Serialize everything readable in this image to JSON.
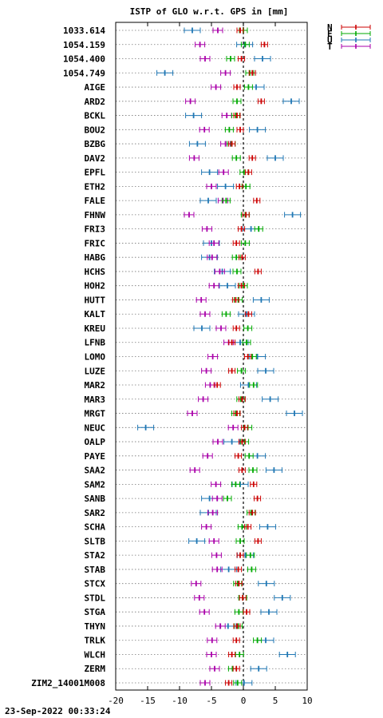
{
  "footer": {
    "timestamp": "23-Sep-2022 00:33:24"
  },
  "chart_data": {
    "type": "scatter",
    "title": "ISTP of GLO w.r.t. GPS in [mm]",
    "xlabel": "",
    "ylabel": "",
    "xlim": [
      -20,
      10
    ],
    "xticks": [
      -20,
      -15,
      -10,
      -5,
      0,
      5,
      10
    ],
    "xtick_labels": [
      "-20",
      "-15",
      "-10",
      "-5",
      "0",
      "5",
      "10"
    ],
    "grid": "horizontal dotted",
    "reference_line": 0,
    "legend_position": "top-right",
    "series": [
      {
        "name": "N",
        "color": "#cc0000"
      },
      {
        "name": "E",
        "color": "#00aa00"
      },
      {
        "name": "U",
        "color": "#1f77b4"
      },
      {
        "name": "T",
        "color": "#aa00aa"
      }
    ],
    "stations": [
      {
        "name": "1033.614",
        "N": -0.5,
        "E": 0.0,
        "U": -8.0,
        "T": -4.0
      },
      {
        "name": "1054.159",
        "N": 3.3,
        "E": 0.3,
        "U": 0.2,
        "T": -6.8
      },
      {
        "name": "1054.400",
        "N": -0.3,
        "E": -2.0,
        "U": 3.0,
        "T": -6.0
      },
      {
        "name": "1054.749",
        "N": 1.4,
        "E": 1.0,
        "U": -12.3,
        "T": -2.8
      },
      {
        "name": "AIGE",
        "N": -1.0,
        "E": 0.8,
        "U": 2.0,
        "T": -4.3
      },
      {
        "name": "ARD2",
        "N": 2.8,
        "E": -1.0,
        "U": 7.5,
        "T": -8.3
      },
      {
        "name": "BCKL",
        "N": -1.0,
        "E": -1.2,
        "U": -7.8,
        "T": -2.6
      },
      {
        "name": "BOU2",
        "N": -0.5,
        "E": -2.2,
        "U": 2.2,
        "T": -6.1
      },
      {
        "name": "BZBG",
        "N": -1.8,
        "E": -1.9,
        "U": -7.2,
        "T": -2.8
      },
      {
        "name": "DAV2",
        "N": 1.4,
        "E": -1.1,
        "U": 5.0,
        "T": -7.7
      },
      {
        "name": "EPFL",
        "N": 0.8,
        "E": 0.1,
        "U": -5.3,
        "T": -3.1
      },
      {
        "name": "ETH2",
        "N": -0.6,
        "E": 0.4,
        "U": -2.8,
        "T": -5.0
      },
      {
        "name": "FALE",
        "N": 2.1,
        "E": -2.7,
        "U": -5.5,
        "T": -3.2
      },
      {
        "name": "FHNW",
        "N": 0.4,
        "E": 0.3,
        "U": 7.7,
        "T": -8.5
      },
      {
        "name": "FRI3",
        "N": -0.3,
        "E": 2.4,
        "U": 1.2,
        "T": -5.7
      },
      {
        "name": "FRIC",
        "N": -1.1,
        "E": 0.3,
        "U": -5.0,
        "T": -4.6
      },
      {
        "name": "HABG",
        "N": -0.2,
        "E": -1.1,
        "U": -5.3,
        "T": -4.9
      },
      {
        "name": "HCHS",
        "N": 2.3,
        "E": -1.0,
        "U": -3.3,
        "T": -3.7
      },
      {
        "name": "HOH2",
        "N": -0.3,
        "E": 0.0,
        "U": -2.5,
        "T": -4.6
      },
      {
        "name": "HUTT",
        "N": -1.2,
        "E": -0.8,
        "U": 2.8,
        "T": -6.6
      },
      {
        "name": "KALT",
        "N": 0.8,
        "E": -2.7,
        "U": 0.5,
        "T": -6.0
      },
      {
        "name": "KREU",
        "N": -1.1,
        "E": 0.7,
        "U": -6.5,
        "T": -3.5
      },
      {
        "name": "LFNB",
        "N": -1.8,
        "E": 0.5,
        "U": -0.5,
        "T": -2.3
      },
      {
        "name": "LOMO",
        "N": 0.7,
        "E": 1.4,
        "U": 2.2,
        "T": -4.8
      },
      {
        "name": "LUZE",
        "N": -1.8,
        "E": -0.3,
        "U": 3.5,
        "T": -5.8
      },
      {
        "name": "MAR2",
        "N": -4.1,
        "E": 1.6,
        "U": 0.8,
        "T": -5.2
      },
      {
        "name": "MAR3",
        "N": -0.2,
        "E": -0.4,
        "U": 4.2,
        "T": -6.3
      },
      {
        "name": "MRGT",
        "N": -1.0,
        "E": -1.2,
        "U": 8.0,
        "T": -8.0
      },
      {
        "name": "NEUC",
        "N": 0.2,
        "E": 0.7,
        "U": -15.3,
        "T": -1.6
      },
      {
        "name": "OALP",
        "N": -0.2,
        "E": 0.2,
        "U": -1.8,
        "T": -4.0
      },
      {
        "name": "PAYE",
        "N": -0.8,
        "E": 0.9,
        "U": 2.2,
        "T": -5.6
      },
      {
        "name": "SAA2",
        "N": -0.2,
        "E": 1.5,
        "U": 4.8,
        "T": -7.6
      },
      {
        "name": "SAM2",
        "N": 1.6,
        "E": -1.2,
        "U": -0.5,
        "T": -4.3
      },
      {
        "name": "SANB",
        "N": 2.2,
        "E": -2.5,
        "U": -5.3,
        "T": -4.1
      },
      {
        "name": "SAR2",
        "N": 1.4,
        "E": 1.2,
        "U": -5.5,
        "T": -4.8
      },
      {
        "name": "SCHA",
        "N": 0.7,
        "E": -0.2,
        "U": 3.8,
        "T": -5.8
      },
      {
        "name": "SLTB",
        "N": 2.3,
        "E": -0.5,
        "U": -7.3,
        "T": -4.6
      },
      {
        "name": "STA2",
        "N": -0.5,
        "E": 1.1,
        "U": 0.3,
        "T": -4.2
      },
      {
        "name": "STAB",
        "N": -0.8,
        "E": 1.3,
        "U": -2.3,
        "T": -4.1
      },
      {
        "name": "STCX",
        "N": -0.7,
        "E": -0.9,
        "U": 3.6,
        "T": -7.4
      },
      {
        "name": "STDL",
        "N": -0.1,
        "E": -0.1,
        "U": 6.1,
        "T": -6.9
      },
      {
        "name": "STGA",
        "N": 0.5,
        "E": -0.7,
        "U": 4.0,
        "T": -6.1
      },
      {
        "name": "THYN",
        "N": -1.0,
        "E": -0.8,
        "U": -2.4,
        "T": -3.6
      },
      {
        "name": "TRLK",
        "N": -1.1,
        "E": 2.2,
        "U": 3.5,
        "T": -4.9
      },
      {
        "name": "WLCH",
        "N": -1.8,
        "E": -0.6,
        "U": 6.9,
        "T": -5.0
      },
      {
        "name": "ZERM",
        "N": -1.1,
        "E": -1.7,
        "U": 2.4,
        "T": -4.5
      },
      {
        "name": "ZIM2_14001M008",
        "N": -2.3,
        "E": -0.9,
        "U": 0.1,
        "T": -6.0
      }
    ]
  }
}
